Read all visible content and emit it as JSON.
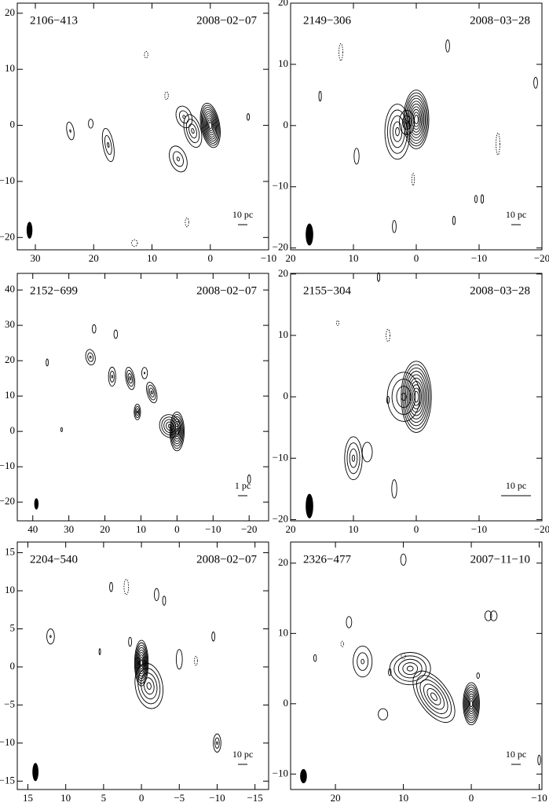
{
  "chart_data": [
    {
      "type": "contour",
      "title": "2106−413",
      "date": "2008−02−07",
      "scale_label": "10 pc",
      "xlim": [
        33.1,
        -10
      ],
      "ylim": [
        -22.2,
        21.8
      ],
      "xticks": [
        30,
        20,
        10,
        0,
        {
          "value": -10,
          "label": "−10"
        }
      ],
      "yticks": [
        20,
        10,
        0,
        {
          "value": -10,
          "label": "−10"
        },
        {
          "value": -20,
          "label": "−20"
        }
      ]
    },
    {
      "type": "contour",
      "title": "2149−306",
      "date": "2008−03−28",
      "scale_label": "10 pc",
      "xlim": [
        20,
        -20
      ],
      "ylim": [
        -20.3,
        20
      ],
      "xticks": [
        20,
        10,
        0,
        {
          "value": -10,
          "label": "−10"
        },
        {
          "value": -20,
          "label": "−20"
        }
      ],
      "yticks": [
        20,
        10,
        0,
        {
          "value": -10,
          "label": "−10"
        },
        {
          "value": -20,
          "label": "−20"
        }
      ]
    },
    {
      "type": "contour",
      "title": "2152−699",
      "date": "2008−02−07",
      "scale_label": "1 pc",
      "xlim": [
        44.3,
        -25.4
      ],
      "ylim": [
        -25.3,
        44.7
      ],
      "xticks": [
        40,
        30,
        20,
        10,
        0,
        {
          "value": -10,
          "label": "−10"
        },
        {
          "value": -20,
          "label": "−20"
        }
      ],
      "yticks": [
        40,
        30,
        20,
        10,
        0,
        {
          "value": -10,
          "label": "−10"
        },
        {
          "value": -20,
          "label": "−20"
        }
      ]
    },
    {
      "type": "contour",
      "title": "2155−304",
      "date": "2008−03−28",
      "scale_label": "10 pc",
      "xlim": [
        20,
        -20
      ],
      "ylim": [
        -20.2,
        20.1
      ],
      "xticks": [
        20,
        10,
        0,
        {
          "value": -10,
          "label": "−10"
        },
        {
          "value": -20,
          "label": "−20"
        }
      ],
      "yticks": [
        20,
        10,
        0,
        {
          "value": -10,
          "label": "−10"
        },
        {
          "value": -20,
          "label": "−20"
        }
      ]
    },
    {
      "type": "contour",
      "title": "2204−540",
      "date": "2008−02−07",
      "scale_label": "10 pc",
      "xlim": [
        16.4,
        -16.8
      ],
      "ylim": [
        -16.1,
        16.4
      ],
      "xticks": [
        15,
        10,
        5,
        0,
        {
          "value": -5,
          "label": "−5"
        },
        {
          "value": -10,
          "label": "−10"
        },
        {
          "value": -15,
          "label": "−15"
        }
      ],
      "yticks": [
        15,
        10,
        5,
        0,
        {
          "value": -5,
          "label": "−5"
        },
        {
          "value": -10,
          "label": "−10"
        },
        {
          "value": -15,
          "label": "−15"
        }
      ]
    },
    {
      "type": "contour",
      "title": "2326−477",
      "date": "2007−11−10",
      "scale_label": "10 pc",
      "xlim": [
        26.6,
        -10.4
      ],
      "ylim": [
        -12.2,
        23.0
      ],
      "xticks": [
        20,
        10,
        0,
        {
          "value": -10,
          "label": "−10"
        }
      ],
      "yticks": [
        20,
        10,
        0,
        {
          "value": -10,
          "label": "−10"
        }
      ]
    }
  ]
}
